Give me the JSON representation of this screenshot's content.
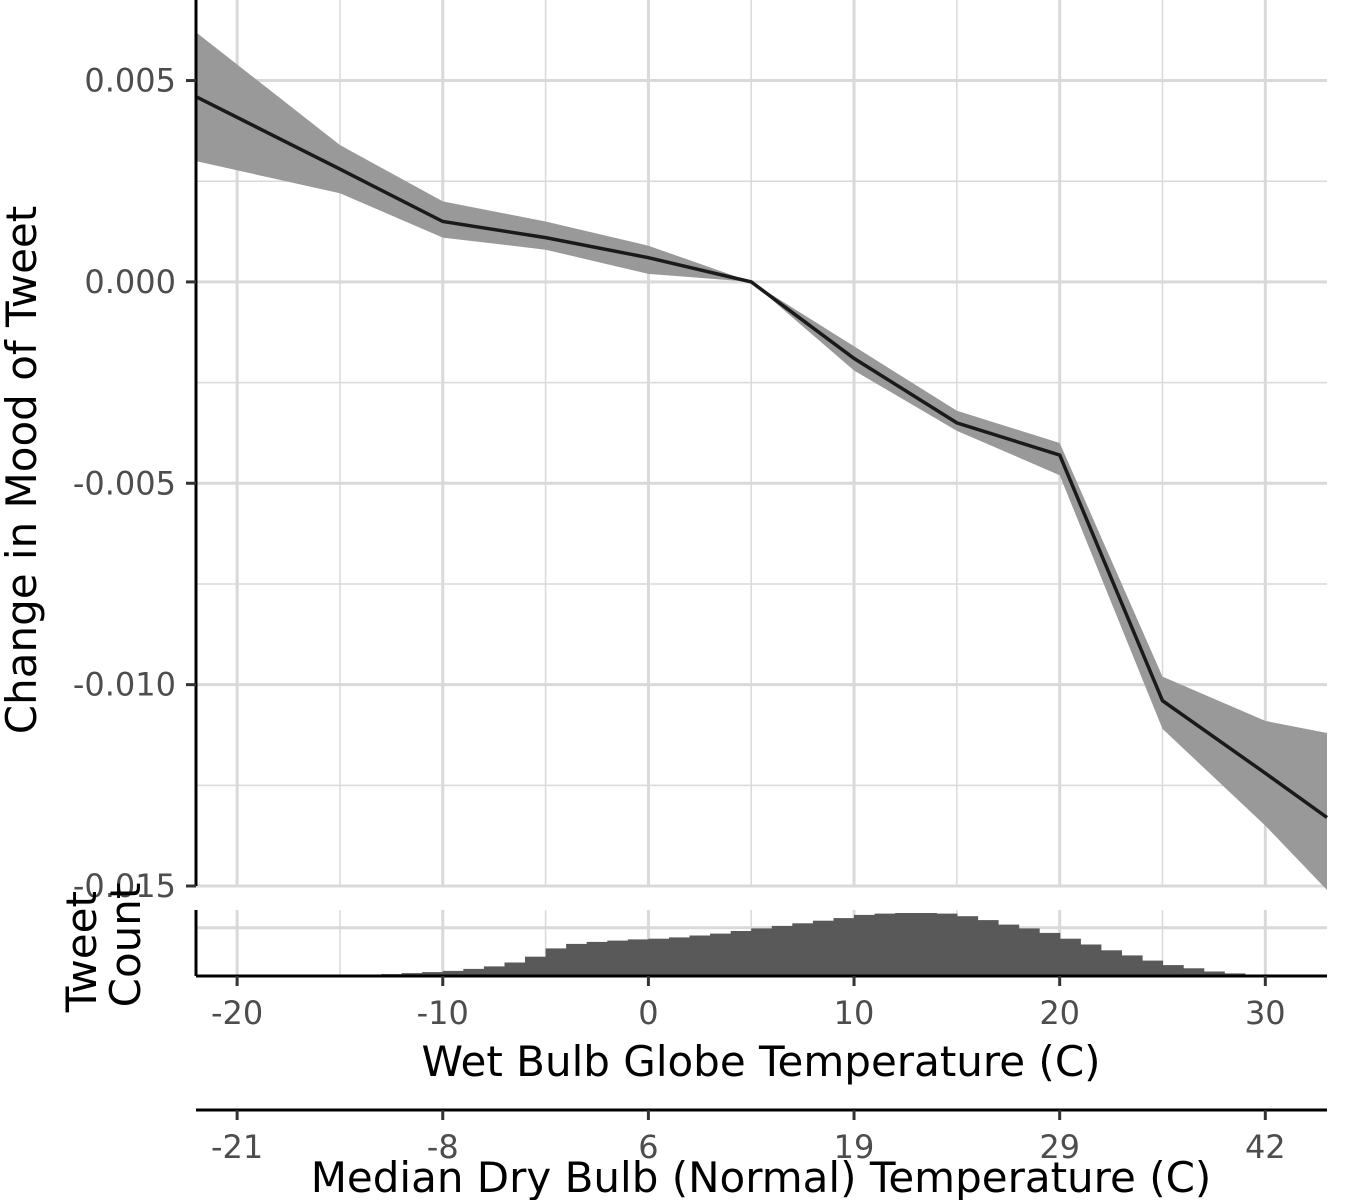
{
  "chart_data": [
    {
      "type": "line",
      "title": "",
      "xlabel": "Wet Bulb Globe Temperature (C)",
      "ylabel": "Change in Mood of Tweet",
      "xlim": [
        -22,
        33
      ],
      "ylim": [
        -0.015,
        0.007
      ],
      "y_ticks": [
        0.005,
        0.0,
        -0.005,
        -0.01,
        -0.015
      ],
      "y_tick_labels": [
        "0.005",
        "0.000",
        "-0.005",
        "-0.010",
        "-0.015"
      ],
      "grid": true,
      "colors": {
        "line": "#1a1a1a",
        "ribbon": "#999999",
        "grid": "#d9d9d9"
      },
      "series": [
        {
          "x": [
            -22,
            -15,
            -10,
            -5,
            0,
            5,
            10,
            15,
            20,
            25,
            30,
            33
          ],
          "y": [
            0.0046,
            0.0028,
            0.0015,
            0.0011,
            0.0006,
            0.0,
            -0.0019,
            -0.0035,
            -0.0043,
            -0.0104,
            -0.0122,
            -0.0133
          ],
          "lower": [
            0.003,
            0.0022,
            0.0011,
            0.0008,
            0.0002,
            0.0,
            -0.0022,
            -0.0037,
            -0.0048,
            -0.0111,
            -0.0135,
            -0.0151
          ],
          "upper": [
            0.0062,
            0.0034,
            0.002,
            0.0015,
            0.0009,
            0.0,
            -0.0016,
            -0.0032,
            -0.004,
            -0.0098,
            -0.0109,
            -0.0112
          ]
        }
      ]
    },
    {
      "type": "bar",
      "ylabel": "Tweet\nCount",
      "ylabel_lines": [
        "Tweet",
        "Count"
      ],
      "xlabel": "Wet Bulb Globe Temperature (C)",
      "xlim": [
        -22,
        33
      ],
      "x_ticks": [
        -20,
        -10,
        0,
        10,
        20,
        30
      ],
      "x_tick_labels": [
        "-20",
        "-10",
        "0",
        "10",
        "20",
        "30"
      ],
      "grid": true,
      "colors": {
        "bar": "#595959"
      },
      "bin_width": 1,
      "x": [
        -22,
        -21,
        -20,
        -19,
        -18,
        -17,
        -16,
        -15,
        -14,
        -13,
        -12,
        -11,
        -10,
        -9,
        -8,
        -7,
        -6,
        -5,
        -4,
        -3,
        -2,
        -1,
        0,
        1,
        2,
        3,
        4,
        5,
        6,
        7,
        8,
        9,
        10,
        11,
        12,
        13,
        14,
        15,
        16,
        17,
        18,
        19,
        20,
        21,
        22,
        23,
        24,
        25,
        26,
        27,
        28,
        29,
        30,
        31,
        32
      ],
      "values": [
        0,
        0,
        0,
        0,
        0,
        0,
        0.005,
        0.01,
        0.02,
        0.03,
        0.045,
        0.06,
        0.08,
        0.11,
        0.15,
        0.21,
        0.3,
        0.43,
        0.5,
        0.53,
        0.55,
        0.57,
        0.58,
        0.6,
        0.63,
        0.66,
        0.7,
        0.74,
        0.78,
        0.82,
        0.86,
        0.9,
        0.95,
        0.97,
        0.98,
        0.98,
        0.97,
        0.93,
        0.87,
        0.8,
        0.74,
        0.67,
        0.58,
        0.49,
        0.4,
        0.32,
        0.24,
        0.17,
        0.12,
        0.07,
        0.04,
        0.02,
        0.01,
        0.005,
        0.002
      ]
    },
    {
      "type": "axis",
      "xlabel": "Median Dry Bulb (Normal) Temperature (C)",
      "tick_positions_wbgt": [
        -20,
        -10,
        0,
        10,
        20,
        30
      ],
      "tick_labels": [
        "-21",
        "-8",
        "6",
        "19",
        "29",
        "42"
      ]
    }
  ]
}
